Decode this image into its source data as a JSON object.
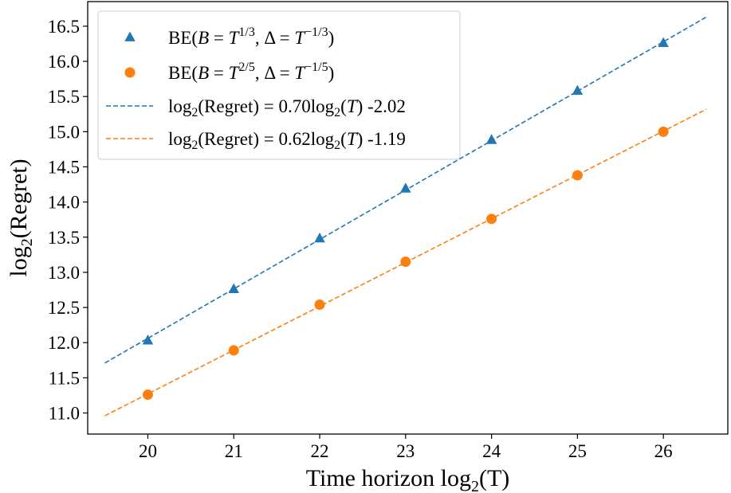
{
  "chart_data": {
    "type": "scatter",
    "xlabel": {
      "prefix": "Time horizon log",
      "sub": "2",
      "paren": "(T)"
    },
    "ylabel": {
      "prefix": "log",
      "sub": "2",
      "suffix": "(Regret)"
    },
    "xlim": [
      19.3,
      26.75
    ],
    "ylim": [
      10.7,
      16.85
    ],
    "x_ticks": [
      20,
      21,
      22,
      23,
      24,
      25,
      26
    ],
    "y_ticks": [
      11.0,
      11.5,
      12.0,
      12.5,
      13.0,
      13.5,
      14.0,
      14.5,
      15.0,
      15.5,
      16.0,
      16.5
    ],
    "grid": false,
    "legend_position": "top-left",
    "series": [
      {
        "name": "BE(B = T^{1/3}, Δ = T^{-1/3})",
        "legend": {
          "pre": "BE(",
          "a": "B",
          "eq1": " = ",
          "b": "T",
          "sup1": "1/3",
          "comma": ", Δ = ",
          "c": "T",
          "sup2": "−1/3",
          "close": ")"
        },
        "kind": "scatter",
        "marker": "triangle",
        "color": "#1f77b4",
        "x": [
          20,
          21,
          22,
          23,
          24,
          25,
          26
        ],
        "y": [
          12.03,
          12.76,
          13.48,
          14.19,
          14.88,
          15.58,
          16.26
        ]
      },
      {
        "name": "BE(B = T^{2/5}, Δ = T^{-1/5})",
        "legend": {
          "pre": "BE(",
          "a": "B",
          "eq1": " = ",
          "b": "T",
          "sup1": "2/5",
          "comma": ", Δ = ",
          "c": "T",
          "sup2": "−1/5",
          "close": ")"
        },
        "kind": "scatter",
        "marker": "circle",
        "color": "#ff7f0e",
        "x": [
          20,
          21,
          22,
          23,
          24,
          25,
          26
        ],
        "y": [
          11.26,
          11.89,
          12.54,
          13.15,
          13.76,
          14.38,
          15.0
        ]
      },
      {
        "name": "log2(Regret) = 0.70log2(T) -2.02",
        "legend": {
          "p1": "log",
          "s1": "2",
          "p2": "(Regret) = 0.70log",
          "s2": "2",
          "p3": "(",
          "t": "T",
          "p4": ") -2.02"
        },
        "kind": "line",
        "style": "dashed",
        "color": "#1f77b4",
        "x": [
          19.5,
          26.5
        ],
        "y": [
          11.71,
          16.63
        ]
      },
      {
        "name": "log2(Regret) = 0.62log2(T) -1.19",
        "legend": {
          "p1": "log",
          "s1": "2",
          "p2": "(Regret) = 0.62log",
          "s2": "2",
          "p3": "(",
          "t": "T",
          "p4": ") -1.19"
        },
        "kind": "line",
        "style": "dashed",
        "color": "#ff7f0e",
        "x": [
          19.5,
          26.5
        ],
        "y": [
          10.96,
          15.32
        ]
      }
    ]
  }
}
